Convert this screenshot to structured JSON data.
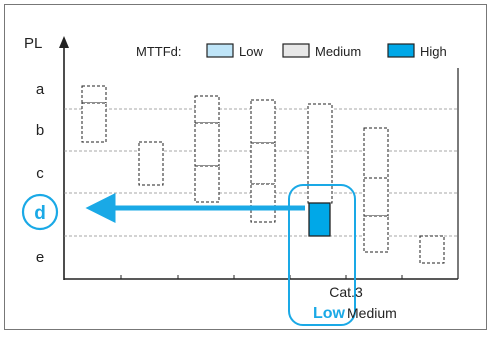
{
  "diagram": {
    "y_axis_label": "PL",
    "pl_levels": [
      "a",
      "b",
      "c",
      "d",
      "e"
    ],
    "highlighted_level": "d",
    "category_label": "Cat.3",
    "mttfd_low_label": "Low",
    "mttfd_medium_label": "Medium"
  },
  "legend": {
    "title": "MTTFd:",
    "items": [
      {
        "label": "Low",
        "color": "#bfe5f8"
      },
      {
        "label": "Medium",
        "color": "#e8e8e8"
      },
      {
        "label": "High",
        "color": "#00a8e8"
      }
    ]
  },
  "colors": {
    "accent": "#1aa9e6",
    "high_fill": "#00a8e8",
    "frame": "#444444",
    "grid": "#8a8a8a"
  }
}
